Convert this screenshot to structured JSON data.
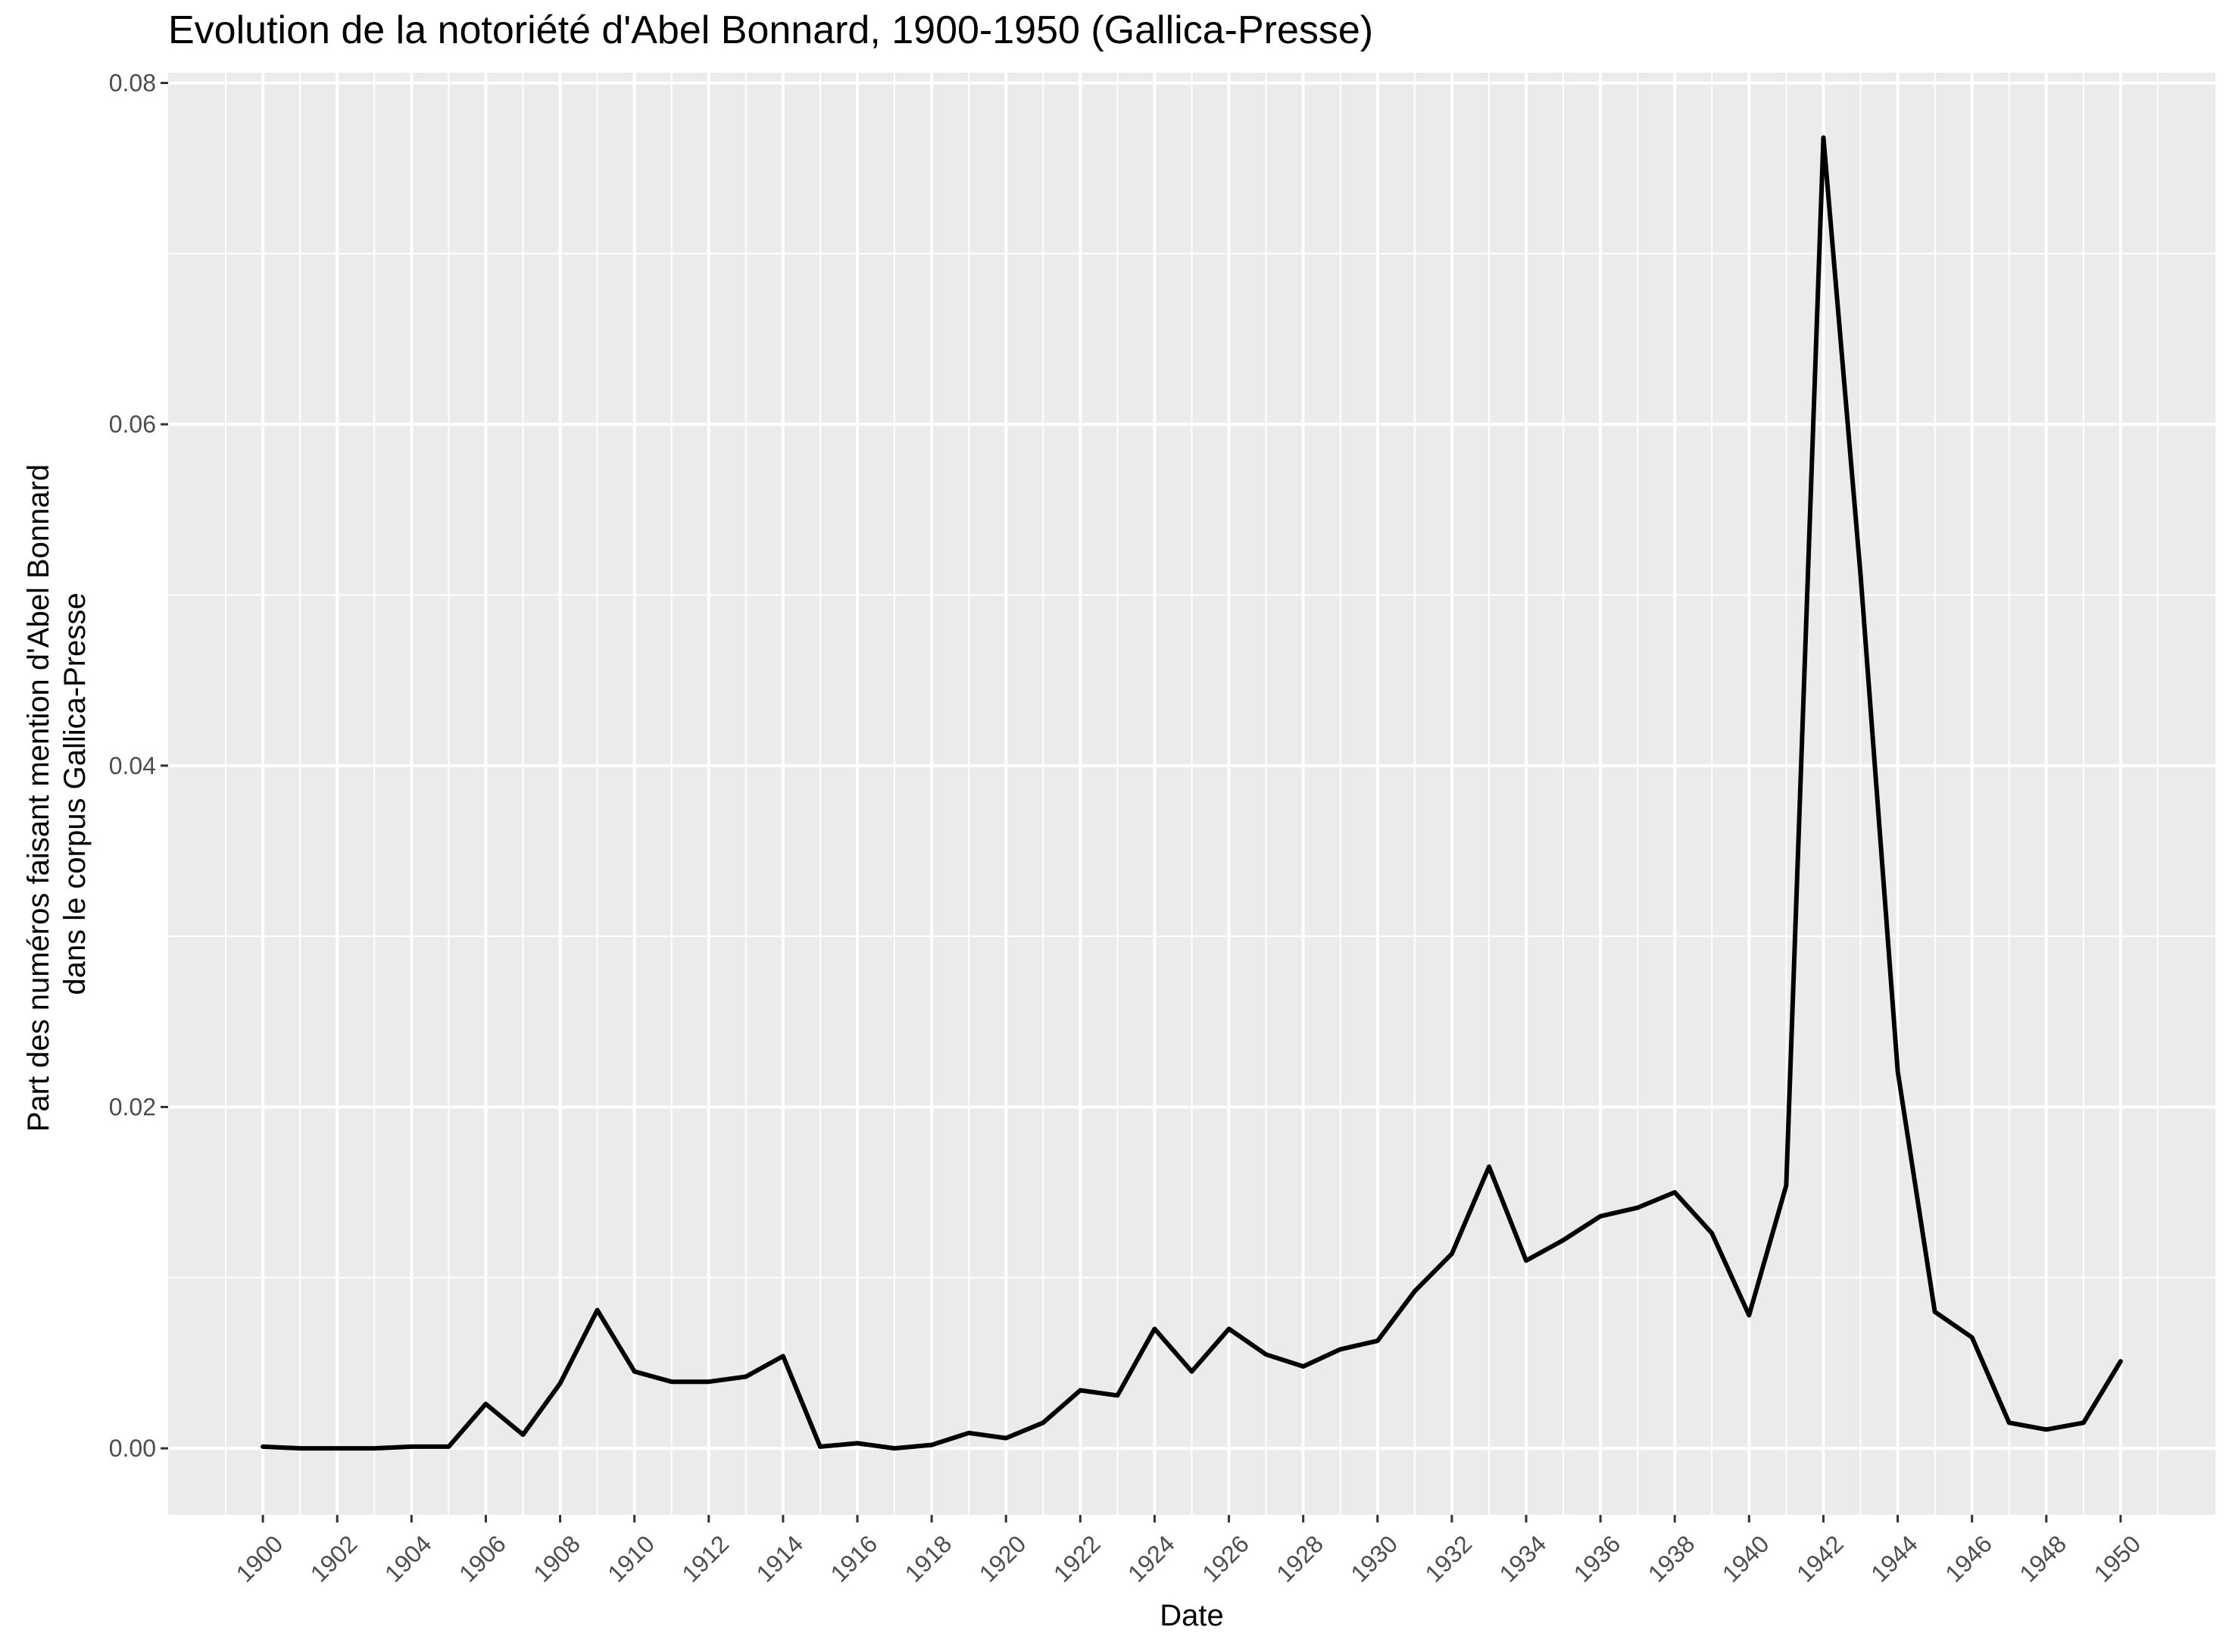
{
  "chart_data": {
    "type": "line",
    "title": "Evolution de la notoriété d'Abel Bonnard, 1900-1950 (Gallica-Presse)",
    "xlabel": "Date",
    "ylabel_lines": [
      "Part des numéros faisant mention d'Abel Bonnard",
      "dans le corpus Gallica-Presse"
    ],
    "x": [
      1900,
      1901,
      1902,
      1903,
      1904,
      1905,
      1906,
      1907,
      1908,
      1909,
      1910,
      1911,
      1912,
      1913,
      1914,
      1915,
      1916,
      1917,
      1918,
      1919,
      1920,
      1921,
      1922,
      1923,
      1924,
      1925,
      1926,
      1927,
      1928,
      1929,
      1930,
      1931,
      1932,
      1933,
      1934,
      1935,
      1936,
      1937,
      1938,
      1939,
      1940,
      1941,
      1942,
      1943,
      1944,
      1945,
      1946,
      1947,
      1948,
      1949,
      1950
    ],
    "y": [
      0.0001,
      0.0,
      0.0,
      0.0,
      0.0001,
      0.0001,
      0.0026,
      0.0008,
      0.0038,
      0.0081,
      0.0045,
      0.0039,
      0.0039,
      0.0042,
      0.0054,
      0.0001,
      0.0003,
      0.0,
      0.0002,
      0.0009,
      0.0006,
      0.0015,
      0.0034,
      0.0031,
      0.007,
      0.0045,
      0.007,
      0.0055,
      0.0048,
      0.0058,
      0.0063,
      0.0092,
      0.0114,
      0.0165,
      0.011,
      0.0122,
      0.0136,
      0.0141,
      0.015,
      0.0126,
      0.0078,
      0.0154,
      0.0768,
      0.0512,
      0.0221,
      0.008,
      0.0065,
      0.0015,
      0.0011,
      0.0015,
      0.0051
    ],
    "x_ticks": [
      "1900",
      "1902",
      "1904",
      "1906",
      "1908",
      "1910",
      "1912",
      "1914",
      "1916",
      "1918",
      "1920",
      "1922",
      "1924",
      "1926",
      "1928",
      "1930",
      "1932",
      "1934",
      "1936",
      "1938",
      "1940",
      "1942",
      "1944",
      "1946",
      "1948",
      "1950"
    ],
    "y_ticks": [
      "0.00",
      "0.02",
      "0.04",
      "0.06",
      "0.08"
    ],
    "xlim": [
      1897.45,
      1952.55
    ],
    "ylim": [
      -0.0039,
      0.0806
    ],
    "grid": true,
    "legend": "none",
    "colors": {
      "panel": "#EBEBEB",
      "grid": "#FFFFFF",
      "line": "#000000",
      "tick_text": "#4D4D4D",
      "axis_title": "#000000"
    }
  }
}
